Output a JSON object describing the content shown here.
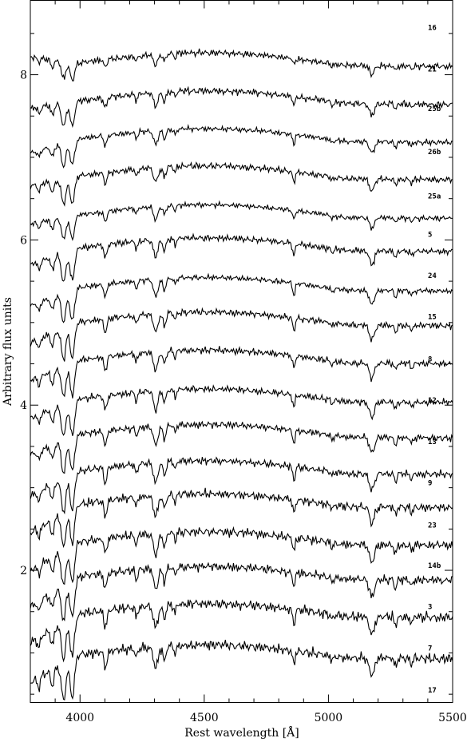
{
  "chart_data": {
    "type": "line",
    "xlabel": "Rest wavelength [Å]",
    "ylabel": "Arbitrary flux units",
    "xlim": [
      3800,
      5500
    ],
    "ylim": [
      0.4,
      8.9
    ],
    "xticks": [
      4000,
      4500,
      5000,
      5500
    ],
    "yticks": [
      2,
      4,
      6,
      8
    ],
    "x_minor_step": 100,
    "y_minor_step": 0.5,
    "grid": false,
    "legend": "none",
    "line_color": "#000000",
    "features": [
      {
        "wavelength": 3934,
        "depth": 0.38,
        "width": 9
      },
      {
        "wavelength": 3969,
        "depth": 0.4,
        "width": 9
      },
      {
        "wavelength": 3889,
        "depth": 0.16,
        "width": 7
      },
      {
        "wavelength": 3835,
        "depth": 0.1,
        "width": 6
      },
      {
        "wavelength": 4102,
        "depth": 0.17,
        "width": 6
      },
      {
        "wavelength": 4227,
        "depth": 0.1,
        "width": 5
      },
      {
        "wavelength": 4305,
        "depth": 0.22,
        "width": 9
      },
      {
        "wavelength": 4340,
        "depth": 0.15,
        "width": 6
      },
      {
        "wavelength": 4383,
        "depth": 0.08,
        "width": 5
      },
      {
        "wavelength": 4861,
        "depth": 0.15,
        "width": 5
      },
      {
        "wavelength": 5015,
        "depth": 0.05,
        "width": 5
      },
      {
        "wavelength": 5175,
        "depth": 0.18,
        "width": 10
      },
      {
        "wavelength": 5270,
        "depth": 0.09,
        "width": 5
      },
      {
        "wavelength": 5335,
        "depth": 0.06,
        "width": 5
      }
    ],
    "series": [
      {
        "name": "16",
        "label_y": 8.54,
        "continuum": 8.22,
        "start": 8.22,
        "depth_scale": 0.55,
        "noise": 0.03
      },
      {
        "name": "21",
        "label_y": 8.04,
        "continuum": 7.76,
        "start": 7.6,
        "depth_scale": 0.75,
        "noise": 0.032
      },
      {
        "name": "25b",
        "label_y": 7.56,
        "continuum": 7.3,
        "start": 7.05,
        "depth_scale": 0.75,
        "noise": 0.025
      },
      {
        "name": "26b",
        "label_y": 7.04,
        "continuum": 6.85,
        "start": 6.65,
        "depth_scale": 0.8,
        "noise": 0.03
      },
      {
        "name": "25a",
        "label_y": 6.5,
        "continuum": 6.38,
        "start": 6.2,
        "depth_scale": 0.7,
        "noise": 0.025
      },
      {
        "name": "5",
        "label_y": 6.04,
        "continuum": 5.98,
        "start": 5.7,
        "depth_scale": 0.95,
        "noise": 0.03
      },
      {
        "name": "24",
        "label_y": 5.54,
        "continuum": 5.5,
        "start": 5.2,
        "depth_scale": 0.95,
        "noise": 0.025
      },
      {
        "name": "15",
        "label_y": 5.04,
        "continuum": 5.08,
        "start": 4.75,
        "depth_scale": 1.0,
        "noise": 0.03
      },
      {
        "name": "8",
        "label_y": 4.53,
        "continuum": 4.62,
        "start": 4.3,
        "depth_scale": 1.0,
        "noise": 0.03
      },
      {
        "name": "12",
        "label_y": 4.03,
        "continuum": 4.15,
        "start": 3.85,
        "depth_scale": 1.05,
        "noise": 0.032
      },
      {
        "name": "13",
        "label_y": 3.53,
        "continuum": 3.72,
        "start": 3.4,
        "depth_scale": 1.05,
        "noise": 0.032
      },
      {
        "name": "9",
        "label_y": 3.03,
        "continuum": 3.28,
        "start": 2.9,
        "depth_scale": 1.1,
        "noise": 0.035
      },
      {
        "name": "23",
        "label_y": 2.52,
        "continuum": 2.88,
        "start": 2.45,
        "depth_scale": 1.1,
        "noise": 0.04
      },
      {
        "name": "14b",
        "label_y": 2.03,
        "continuum": 2.42,
        "start": 2.0,
        "depth_scale": 1.15,
        "noise": 0.04
      },
      {
        "name": "3",
        "label_y": 1.53,
        "continuum": 2.0,
        "start": 1.55,
        "depth_scale": 1.15,
        "noise": 0.04
      },
      {
        "name": "7",
        "label_y": 1.03,
        "continuum": 1.55,
        "start": 1.12,
        "depth_scale": 1.2,
        "noise": 0.045
      },
      {
        "name": "17",
        "label_y": 0.52,
        "continuum": 1.05,
        "start": 0.65,
        "depth_scale": 1.2,
        "noise": 0.045
      }
    ]
  }
}
